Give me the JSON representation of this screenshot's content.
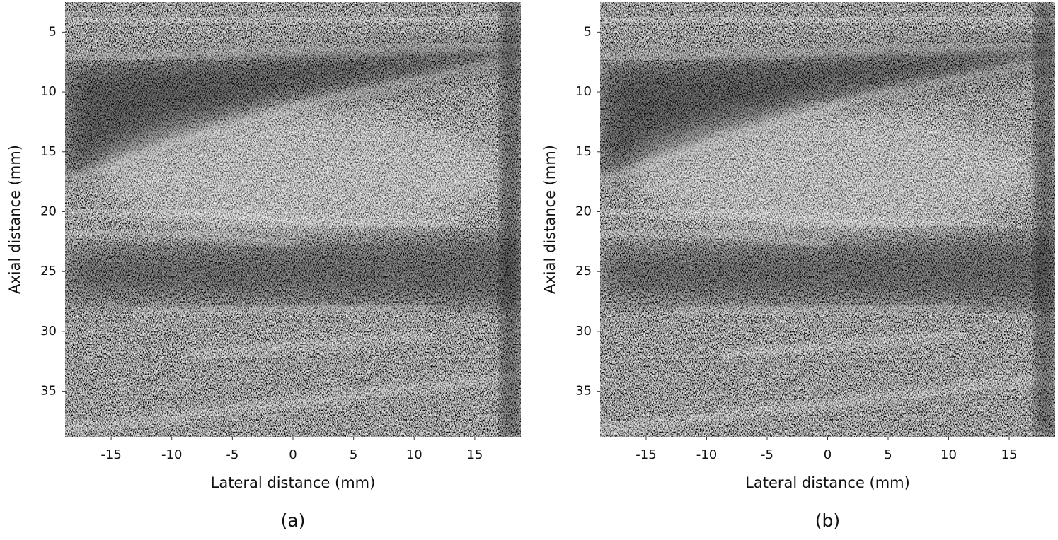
{
  "chart_data": [
    {
      "type": "image",
      "caption": "(a)",
      "xlabel": "Lateral distance (mm)",
      "ylabel": "Axial distance (mm)",
      "xlim": [
        -18.8,
        18.8
      ],
      "xticks": [
        -15,
        -10,
        -5,
        0,
        5,
        10,
        15
      ],
      "ylim": [
        2.5,
        38.8
      ],
      "yticks": [
        5,
        10,
        15,
        20,
        25,
        30,
        35
      ],
      "yreversed": true
    },
    {
      "type": "image",
      "caption": "(b)",
      "xlabel": "Lateral distance (mm)",
      "ylabel": "Axial distance (mm)",
      "xlim": [
        -18.8,
        18.8
      ],
      "xticks": [
        -15,
        -10,
        -5,
        0,
        5,
        10,
        15
      ],
      "ylim": [
        2.5,
        38.8
      ],
      "yticks": [
        5,
        10,
        15,
        20,
        25,
        30,
        35
      ],
      "yreversed": true
    }
  ]
}
